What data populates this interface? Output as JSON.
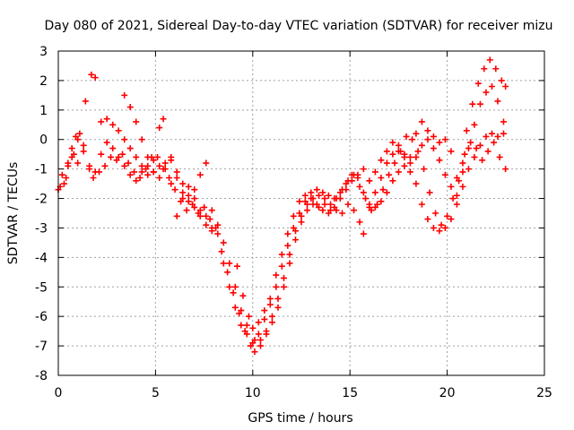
{
  "chart_data": {
    "type": "scatter",
    "title": "Day 080 of 2021, Sidereal Day-to-day VTEC variation (SDTVAR) for receiver mizu",
    "xlabel": "GPS time / hours",
    "ylabel": "SDTVAR / TECUs",
    "xlim": [
      0,
      25
    ],
    "ylim": [
      -8,
      3
    ],
    "xticks": [
      "0",
      "5",
      "10",
      "15",
      "20",
      "25"
    ],
    "yticks": [
      "3",
      "2",
      "1",
      "0",
      "-1",
      "-2",
      "-3",
      "-4",
      "-5",
      "-6",
      "-7",
      "-8"
    ],
    "grid": true,
    "marker": "+",
    "color": "#ff0000",
    "series": [
      {
        "points": [
          [
            0.0,
            -1.7
          ],
          [
            0.3,
            -1.5
          ],
          [
            0.5,
            -0.8
          ],
          [
            0.7,
            -0.3
          ],
          [
            0.9,
            0.1
          ],
          [
            1.1,
            0.2
          ],
          [
            1.3,
            -0.2
          ],
          [
            1.6,
            -0.9
          ],
          [
            1.8,
            -1.3
          ],
          [
            2.1,
            -1.1
          ],
          [
            2.4,
            -0.9
          ],
          [
            2.7,
            -0.6
          ],
          [
            3.0,
            -0.7
          ],
          [
            3.3,
            -0.5
          ],
          [
            3.6,
            -0.8
          ],
          [
            3.9,
            -1.1
          ],
          [
            4.2,
            -1.3
          ],
          [
            4.5,
            -1.0
          ],
          [
            4.8,
            -0.6
          ],
          [
            5.1,
            -0.6
          ],
          [
            5.4,
            -1.0
          ],
          [
            5.7,
            -1.3
          ],
          [
            6.0,
            -1.7
          ],
          [
            6.3,
            -2.1
          ],
          [
            6.6,
            -2.4
          ],
          [
            6.9,
            -2.2
          ],
          [
            7.2,
            -2.5
          ],
          [
            7.5,
            -2.3
          ],
          [
            7.8,
            -2.7
          ],
          [
            8.1,
            -3.0
          ],
          [
            8.4,
            -3.8
          ],
          [
            8.7,
            -4.5
          ],
          [
            9.0,
            -5.2
          ],
          [
            9.3,
            -5.9
          ],
          [
            9.6,
            -6.5
          ],
          [
            9.9,
            -7.0
          ],
          [
            10.1,
            -7.2
          ],
          [
            10.4,
            -6.8
          ],
          [
            10.7,
            -6.5
          ],
          [
            11.0,
            -6.2
          ],
          [
            11.3,
            -5.7
          ],
          [
            11.6,
            -5.0
          ],
          [
            11.9,
            -4.2
          ],
          [
            12.2,
            -3.4
          ],
          [
            12.5,
            -2.8
          ],
          [
            12.8,
            -2.4
          ],
          [
            13.1,
            -2.2
          ],
          [
            13.4,
            -2.3
          ],
          [
            13.7,
            -2.2
          ],
          [
            14.0,
            -2.4
          ],
          [
            14.3,
            -2.4
          ],
          [
            14.6,
            -2.5
          ],
          [
            14.9,
            -2.2
          ],
          [
            15.2,
            -2.4
          ],
          [
            15.5,
            -2.8
          ],
          [
            15.7,
            -3.2
          ],
          [
            16.0,
            -2.3
          ],
          [
            16.3,
            -1.8
          ],
          [
            16.6,
            -1.3
          ],
          [
            16.9,
            -0.8
          ],
          [
            17.2,
            -0.5
          ],
          [
            17.5,
            -0.4
          ],
          [
            17.8,
            -0.5
          ],
          [
            18.1,
            -0.8
          ],
          [
            18.4,
            -1.5
          ],
          [
            18.7,
            -2.2
          ],
          [
            19.0,
            -2.7
          ],
          [
            19.3,
            -3.0
          ],
          [
            19.6,
            -3.1
          ],
          [
            19.9,
            -3.0
          ],
          [
            20.2,
            -2.7
          ],
          [
            20.5,
            -2.2
          ],
          [
            20.8,
            -1.6
          ],
          [
            21.1,
            -1.0
          ],
          [
            21.4,
            -0.6
          ],
          [
            21.7,
            -0.2
          ],
          [
            22.0,
            0.1
          ],
          [
            22.3,
            0.2
          ],
          [
            22.6,
            0.1
          ],
          [
            22.9,
            0.2
          ]
        ]
      },
      {
        "points": [
          [
            0.1,
            -1.6
          ],
          [
            0.4,
            -1.3
          ],
          [
            0.7,
            -0.6
          ],
          [
            1.0,
            -0.8
          ],
          [
            1.4,
            1.3
          ],
          [
            1.7,
            2.2
          ],
          [
            1.9,
            2.1
          ],
          [
            2.2,
            0.6
          ],
          [
            2.5,
            0.7
          ],
          [
            2.8,
            0.5
          ],
          [
            3.1,
            0.3
          ],
          [
            3.4,
            0.0
          ],
          [
            3.7,
            -0.3
          ],
          [
            4.0,
            -0.6
          ],
          [
            4.3,
            -0.9
          ],
          [
            4.6,
            -1.2
          ],
          [
            4.9,
            -1.1
          ],
          [
            5.2,
            -0.9
          ],
          [
            5.5,
            -0.8
          ],
          [
            5.8,
            -0.7
          ],
          [
            6.1,
            -1.1
          ],
          [
            6.4,
            -1.5
          ],
          [
            6.7,
            -1.9
          ],
          [
            7.0,
            -2.3
          ],
          [
            7.3,
            -2.6
          ],
          [
            7.6,
            -2.9
          ],
          [
            7.9,
            -3.1
          ],
          [
            8.2,
            -3.2
          ],
          [
            8.5,
            -4.2
          ],
          [
            8.8,
            -5.0
          ],
          [
            9.1,
            -5.7
          ],
          [
            9.4,
            -6.3
          ],
          [
            9.7,
            -6.6
          ],
          [
            10.0,
            -6.9
          ],
          [
            10.3,
            -6.6
          ],
          [
            10.6,
            -6.1
          ],
          [
            10.9,
            -5.6
          ],
          [
            11.2,
            -5.0
          ],
          [
            11.5,
            -4.3
          ],
          [
            11.8,
            -3.6
          ],
          [
            12.1,
            -3.0
          ],
          [
            12.4,
            -2.5
          ],
          [
            12.7,
            -2.1
          ],
          [
            13.0,
            -1.8
          ],
          [
            13.3,
            -1.7
          ],
          [
            13.6,
            -1.8
          ],
          [
            13.9,
            -1.9
          ],
          [
            14.2,
            -2.0
          ],
          [
            14.5,
            -1.8
          ],
          [
            14.8,
            -1.5
          ],
          [
            15.1,
            -1.2
          ],
          [
            15.4,
            -1.3
          ],
          [
            15.7,
            -1.8
          ],
          [
            16.0,
            -2.2
          ],
          [
            16.3,
            -2.3
          ],
          [
            16.6,
            -2.1
          ],
          [
            16.9,
            -1.8
          ],
          [
            17.2,
            -1.4
          ],
          [
            17.5,
            -1.1
          ],
          [
            17.8,
            -0.9
          ],
          [
            18.1,
            -0.6
          ],
          [
            18.4,
            0.2
          ],
          [
            18.7,
            0.6
          ],
          [
            19.0,
            0.3
          ],
          [
            19.3,
            0.1
          ],
          [
            19.6,
            -0.1
          ],
          [
            19.9,
            0.0
          ],
          [
            20.2,
            -0.4
          ],
          [
            20.5,
            -1.3
          ],
          [
            20.8,
            -0.8
          ],
          [
            21.0,
            0.3
          ],
          [
            21.3,
            1.2
          ],
          [
            21.6,
            1.9
          ],
          [
            21.9,
            2.4
          ],
          [
            22.2,
            2.7
          ],
          [
            22.5,
            2.4
          ],
          [
            22.8,
            2.0
          ],
          [
            23.0,
            1.8
          ]
        ]
      },
      {
        "points": [
          [
            0.2,
            -1.2
          ],
          [
            0.5,
            -0.9
          ],
          [
            0.8,
            -0.5
          ],
          [
            1.0,
            0.0
          ],
          [
            1.3,
            -0.4
          ],
          [
            1.6,
            -1.0
          ],
          [
            1.9,
            -1.1
          ],
          [
            2.2,
            -0.5
          ],
          [
            2.5,
            -0.1
          ],
          [
            2.8,
            -0.3
          ],
          [
            3.1,
            -0.6
          ],
          [
            3.4,
            -0.9
          ],
          [
            3.7,
            -1.2
          ],
          [
            4.0,
            -1.4
          ],
          [
            4.3,
            -1.1
          ],
          [
            4.6,
            -0.9
          ],
          [
            4.9,
            -0.7
          ],
          [
            5.2,
            0.4
          ],
          [
            5.4,
            0.7
          ],
          [
            5.8,
            -0.6
          ],
          [
            6.1,
            -1.3
          ],
          [
            6.4,
            -1.8
          ],
          [
            6.7,
            -2.1
          ],
          [
            7.0,
            -1.7
          ],
          [
            7.3,
            -1.2
          ],
          [
            7.6,
            -0.8
          ],
          [
            7.9,
            -2.4
          ],
          [
            8.2,
            -2.9
          ],
          [
            8.5,
            -3.5
          ],
          [
            8.8,
            -4.2
          ],
          [
            9.1,
            -5.0
          ],
          [
            9.4,
            -5.8
          ],
          [
            9.7,
            -6.3
          ],
          [
            10.0,
            -6.4
          ],
          [
            10.3,
            -6.2
          ],
          [
            10.6,
            -5.8
          ],
          [
            10.9,
            -5.4
          ],
          [
            11.2,
            -4.6
          ],
          [
            11.5,
            -3.9
          ],
          [
            11.8,
            -3.2
          ],
          [
            12.1,
            -2.6
          ],
          [
            12.4,
            -2.1
          ],
          [
            12.7,
            -1.9
          ],
          [
            13.0,
            -2.0
          ],
          [
            13.3,
            -2.2
          ],
          [
            13.6,
            -2.4
          ],
          [
            13.9,
            -2.5
          ],
          [
            14.2,
            -2.3
          ],
          [
            14.5,
            -2.0
          ],
          [
            14.8,
            -1.7
          ],
          [
            15.1,
            -1.4
          ],
          [
            15.4,
            -1.2
          ],
          [
            15.7,
            -1.0
          ],
          [
            16.0,
            -1.4
          ],
          [
            16.3,
            -1.1
          ],
          [
            16.6,
            -0.7
          ],
          [
            16.9,
            -0.4
          ],
          [
            17.2,
            -0.1
          ],
          [
            17.5,
            -0.2
          ],
          [
            17.8,
            -0.6
          ],
          [
            18.1,
            -1.1
          ],
          [
            18.4,
            -0.6
          ],
          [
            18.7,
            -0.2
          ],
          [
            19.0,
            0.0
          ],
          [
            19.3,
            -0.3
          ],
          [
            19.6,
            -0.7
          ],
          [
            19.9,
            -1.2
          ],
          [
            20.2,
            -1.6
          ],
          [
            20.5,
            -1.9
          ],
          [
            20.8,
            -1.1
          ],
          [
            21.1,
            -0.3
          ],
          [
            21.4,
            0.5
          ],
          [
            21.7,
            1.2
          ],
          [
            22.0,
            1.6
          ],
          [
            22.3,
            1.8
          ],
          [
            22.6,
            1.3
          ],
          [
            22.9,
            0.6
          ]
        ]
      },
      {
        "points": [
          [
            3.4,
            1.5
          ],
          [
            3.7,
            1.1
          ],
          [
            4.0,
            0.6
          ],
          [
            4.3,
            0.0
          ],
          [
            4.6,
            -0.6
          ],
          [
            4.9,
            -1.1
          ],
          [
            5.2,
            -1.3
          ],
          [
            5.5,
            -1.0
          ],
          [
            5.8,
            -1.5
          ],
          [
            6.1,
            -2.6
          ],
          [
            6.4,
            -2.0
          ],
          [
            6.7,
            -1.6
          ],
          [
            7.0,
            -2.0
          ],
          [
            7.3,
            -2.4
          ],
          [
            7.6,
            -2.6
          ],
          [
            7.9,
            -3.0
          ],
          [
            9.2,
            -4.3
          ],
          [
            9.5,
            -5.3
          ],
          [
            9.8,
            -6.0
          ],
          [
            10.1,
            -6.8
          ],
          [
            10.4,
            -7.0
          ],
          [
            10.7,
            -6.6
          ],
          [
            11.0,
            -6.0
          ],
          [
            11.3,
            -5.4
          ],
          [
            11.6,
            -4.7
          ],
          [
            11.9,
            -3.9
          ],
          [
            12.2,
            -3.1
          ],
          [
            12.5,
            -2.6
          ],
          [
            12.8,
            -2.2
          ],
          [
            13.1,
            -2.0
          ],
          [
            13.4,
            -1.9
          ],
          [
            13.7,
            -2.0
          ],
          [
            14.0,
            -2.2
          ],
          [
            14.3,
            -2.0
          ],
          [
            14.6,
            -1.7
          ],
          [
            14.9,
            -1.4
          ],
          [
            15.2,
            -1.2
          ],
          [
            15.5,
            -1.6
          ],
          [
            15.8,
            -2.0
          ],
          [
            16.1,
            -2.4
          ],
          [
            16.4,
            -2.2
          ],
          [
            16.7,
            -1.7
          ],
          [
            17.0,
            -1.2
          ],
          [
            17.3,
            -0.8
          ],
          [
            17.6,
            -0.4
          ],
          [
            17.9,
            0.1
          ],
          [
            18.2,
            0.0
          ],
          [
            18.5,
            -0.4
          ],
          [
            18.8,
            -1.0
          ],
          [
            19.1,
            -1.8
          ],
          [
            19.4,
            -2.5
          ],
          [
            19.7,
            -2.9
          ],
          [
            20.0,
            -2.6
          ],
          [
            20.3,
            -2.0
          ],
          [
            20.6,
            -1.4
          ],
          [
            20.9,
            -0.5
          ],
          [
            21.2,
            -0.1
          ],
          [
            21.5,
            -0.3
          ],
          [
            21.8,
            -0.7
          ],
          [
            22.1,
            -0.4
          ],
          [
            22.4,
            -0.1
          ],
          [
            22.7,
            -0.6
          ],
          [
            23.0,
            -1.0
          ]
        ]
      }
    ]
  }
}
